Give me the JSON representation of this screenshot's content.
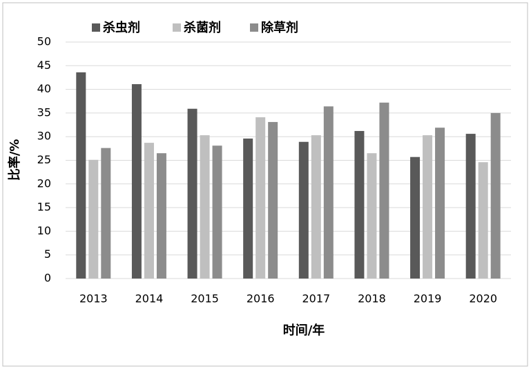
{
  "chart_data": {
    "type": "bar",
    "x_label": "时间/年",
    "y_label": "比率/%",
    "categories": [
      "2013",
      "2014",
      "2015",
      "2016",
      "2017",
      "2018",
      "2019",
      "2020"
    ],
    "series": [
      {
        "name": "杀虫剂",
        "color": "#595959",
        "values": [
          43.6,
          41.1,
          35.9,
          29.6,
          28.9,
          31.2,
          25.7,
          30.6
        ]
      },
      {
        "name": "杀菌剂",
        "color": "#bfbfbf",
        "values": [
          25.1,
          28.7,
          30.3,
          34.1,
          30.3,
          26.5,
          30.3,
          24.6
        ]
      },
      {
        "name": "除草剂",
        "color": "#8c8c8c",
        "values": [
          27.6,
          26.5,
          28.1,
          33.1,
          36.4,
          37.2,
          31.9,
          35.0
        ]
      }
    ],
    "ylim": [
      0,
      50
    ],
    "yticks": [
      0,
      5,
      10,
      15,
      20,
      25,
      30,
      35,
      40,
      45,
      50
    ],
    "grid": true,
    "legend": "top"
  }
}
